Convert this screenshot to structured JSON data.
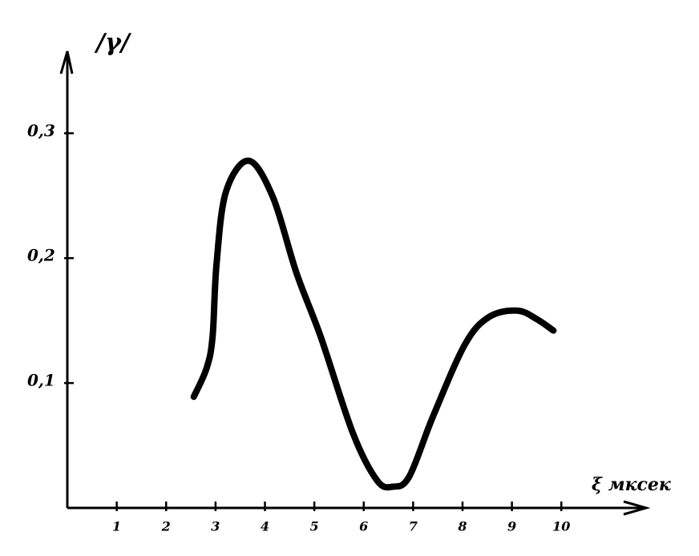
{
  "chart_data": {
    "type": "line",
    "y_label": "/γ/",
    "x_label": "ξ мксек",
    "xlim": [
      0,
      11.7
    ],
    "ylim": [
      0,
      0.365
    ],
    "xticks": [
      1,
      2,
      3,
      4,
      5,
      6,
      7,
      8,
      9,
      10
    ],
    "yticks": [
      {
        "value": 0.1,
        "label": "0,1"
      },
      {
        "value": 0.2,
        "label": "0,2"
      },
      {
        "value": 0.3,
        "label": "0,3"
      }
    ],
    "grid": false,
    "series": [
      {
        "color": "#000000",
        "x": [
          2.56,
          2.82,
          2.94,
          3.02,
          3.21,
          3.67,
          4.16,
          4.64,
          5.13,
          5.78,
          6.27,
          6.59,
          6.92,
          7.4,
          8.05,
          8.54,
          9.11,
          9.51,
          9.84
        ],
        "values": [
          0.089,
          0.112,
          0.137,
          0.195,
          0.253,
          0.278,
          0.249,
          0.188,
          0.137,
          0.06,
          0.022,
          0.017,
          0.025,
          0.073,
          0.131,
          0.153,
          0.158,
          0.151,
          0.142
        ]
      }
    ]
  }
}
